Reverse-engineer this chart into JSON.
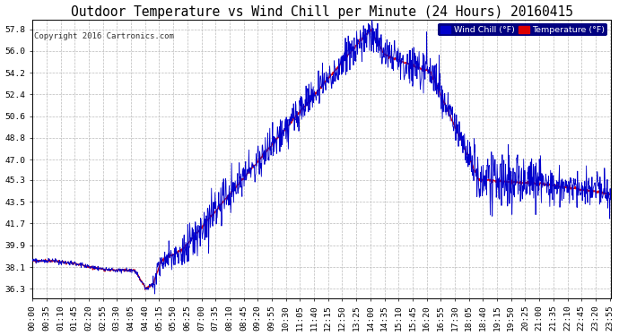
{
  "title": "Outdoor Temperature vs Wind Chill per Minute (24 Hours) 20160415",
  "copyright": "Copyright 2016 Cartronics.com",
  "legend_wind_chill": "Wind Chill (°F)",
  "legend_temperature": "Temperature (°F)",
  "yticks": [
    36.3,
    38.1,
    39.9,
    41.7,
    43.5,
    45.3,
    47.0,
    48.8,
    50.6,
    52.4,
    54.2,
    56.0,
    57.8
  ],
  "ylim": [
    35.5,
    58.6
  ],
  "bg_color": "#ffffff",
  "plot_bg_color": "#ffffff",
  "grid_color": "#bbbbbb",
  "temp_color": "#dd0000",
  "wind_color": "#0000cc",
  "title_fontsize": 10.5,
  "tick_fontsize": 6.8,
  "n_minutes": 1440
}
